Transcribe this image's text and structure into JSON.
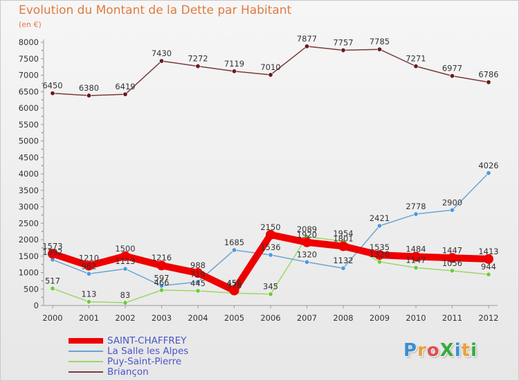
{
  "title": "Evolution du Montant de la Dette par Habitant",
  "unit_label": "(en €)",
  "logo": {
    "text": "ProXiti",
    "letters": [
      {
        "ch": "P",
        "color": "#3a8fd0"
      },
      {
        "ch": "r",
        "color": "#e8a23a"
      },
      {
        "ch": "o",
        "color": "#e05050"
      },
      {
        "ch": "X",
        "color": "#3aaa3a"
      },
      {
        "ch": "i",
        "color": "#3a8fd0"
      },
      {
        "ch": "t",
        "color": "#e8a23a"
      },
      {
        "ch": "i",
        "color": "#3aaa3a"
      }
    ]
  },
  "chart_data": {
    "type": "line",
    "title": "Evolution du Montant de la Dette par Habitant",
    "ylabel": "(en €)",
    "x": [
      "2000",
      "2001",
      "2002",
      "2003",
      "2004",
      "2005",
      "2006",
      "2007",
      "2008",
      "2009",
      "2010",
      "2011",
      "2012"
    ],
    "ylim": [
      0,
      8000
    ],
    "yticks": [
      0,
      500,
      1000,
      1500,
      2000,
      2500,
      3000,
      3500,
      4000,
      4500,
      5000,
      5500,
      6000,
      6500,
      7000,
      7500,
      8000
    ],
    "grid": false,
    "legend_position": "bottom-left",
    "series": [
      {
        "name": "SAINT-CHAFFREY",
        "values": [
          1573,
          1210,
          1500,
          1216,
          988,
          455,
          2150,
          1920,
          1801,
          1535,
          1484,
          1447,
          1413
        ],
        "color": "#ee0000",
        "marker_color": "#ee0000",
        "width": 10,
        "marker_r": 7
      },
      {
        "name": "La Salle les Alpes",
        "values": [
          1392,
          962,
          1113,
          597,
          719,
          1685,
          1536,
          1320,
          1132,
          2421,
          2778,
          2900,
          4026
        ],
        "color": "#6aa4d4",
        "marker_color": "#4a9adf",
        "width": 1.5,
        "marker_r": 3.2
      },
      {
        "name": "Puy-Saint-Pierre",
        "values": [
          517,
          113,
          83,
          466,
          445,
          376,
          345,
          2089,
          1954,
          1326,
          1147,
          1056,
          944
        ],
        "color": "#9bd66a",
        "marker_color": "#6acc3a",
        "width": 1.5,
        "marker_r": 3.2
      },
      {
        "name": "Briançon",
        "values": [
          6450,
          6380,
          6419,
          7430,
          7272,
          7119,
          7010,
          7877,
          7757,
          7785,
          7271,
          6977,
          6786
        ],
        "color": "#7a3a3a",
        "marker_color": "#6a1a1a",
        "width": 1.5,
        "marker_r": 3.2
      }
    ]
  }
}
